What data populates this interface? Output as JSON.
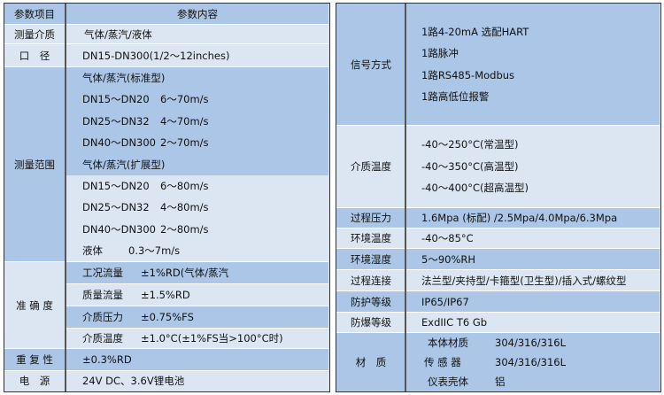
{
  "left": {
    "header": {
      "item": "参数项目",
      "content": "参数内容"
    },
    "medium": {
      "label": "测量介质",
      "value": "气体/蒸汽/液体"
    },
    "caliber": {
      "label": "口　径",
      "value": "DN15-DN300(1/2～12inches)"
    },
    "range": {
      "label": "测量范围",
      "standard": [
        "气体/蒸汽(标准型)",
        [
          "DN15～DN20",
          "6～70m/s"
        ],
        [
          "DN25～DN32",
          "4～70m/s"
        ],
        [
          "DN40～DN300",
          "2～70m/s"
        ],
        "气体/蒸汽(扩展型)"
      ],
      "extended": [
        [
          "DN15～DN20",
          "6～80m/s"
        ],
        [
          "DN25～DN32",
          "4～80m/s"
        ],
        [
          "DN40～DN300",
          "2～80m/s"
        ],
        [
          "液体",
          "0.3～7m/s"
        ]
      ]
    },
    "accuracy": {
      "label": "准 确 度",
      "rows": [
        [
          "工况流量",
          "±1%RD(气体/蒸汽"
        ],
        [
          "质量流量",
          "±1.5%RD"
        ],
        [
          "介质压力",
          "±0.75%FS"
        ],
        [
          "介质温度",
          "±1.0°C(±1%FS当>100°C时)"
        ]
      ]
    },
    "repeat": {
      "label": "重 复 性",
      "value": "±0.3%RD"
    },
    "power": {
      "label": "电　源",
      "value": "24V DC、3.6V锂电池"
    }
  },
  "right": {
    "signal": {
      "label": "信号方式",
      "lines": [
        "1路4-20mA 选配HART",
        "1路脉冲",
        "1路RS485-Modbus",
        "1路高低位报警"
      ]
    },
    "temp": {
      "label": "介质温度",
      "lines": [
        "-40～250°C(常温型)",
        "-40～350°C(高温型)",
        "-40～400°C(超高温型)"
      ]
    },
    "rows": [
      [
        "过程压力",
        "1.6Mpa (标配) /2.5Mpa/4.0Mpa/6.3Mpa"
      ],
      [
        "环境温度",
        "-40～85°C"
      ],
      [
        "环境湿度",
        "5～90%RH"
      ],
      [
        "过程连接",
        "法兰型/夹持型/卡箍型(卫生型)/插入式/螺纹型"
      ],
      [
        "防护等级",
        "IP65/IP67"
      ],
      [
        "防爆等级",
        "ExdIIC T6 Gb"
      ]
    ],
    "material": {
      "label": "材　质",
      "rows": [
        [
          "本体材质",
          "304/316/316L"
        ],
        [
          "传 感 器",
          "304/316/316L"
        ],
        [
          "仪表壳体",
          "铝"
        ]
      ]
    }
  },
  "colors": {
    "dark": "#abc6e6",
    "light": "#dce6f2",
    "border": "#333333"
  }
}
